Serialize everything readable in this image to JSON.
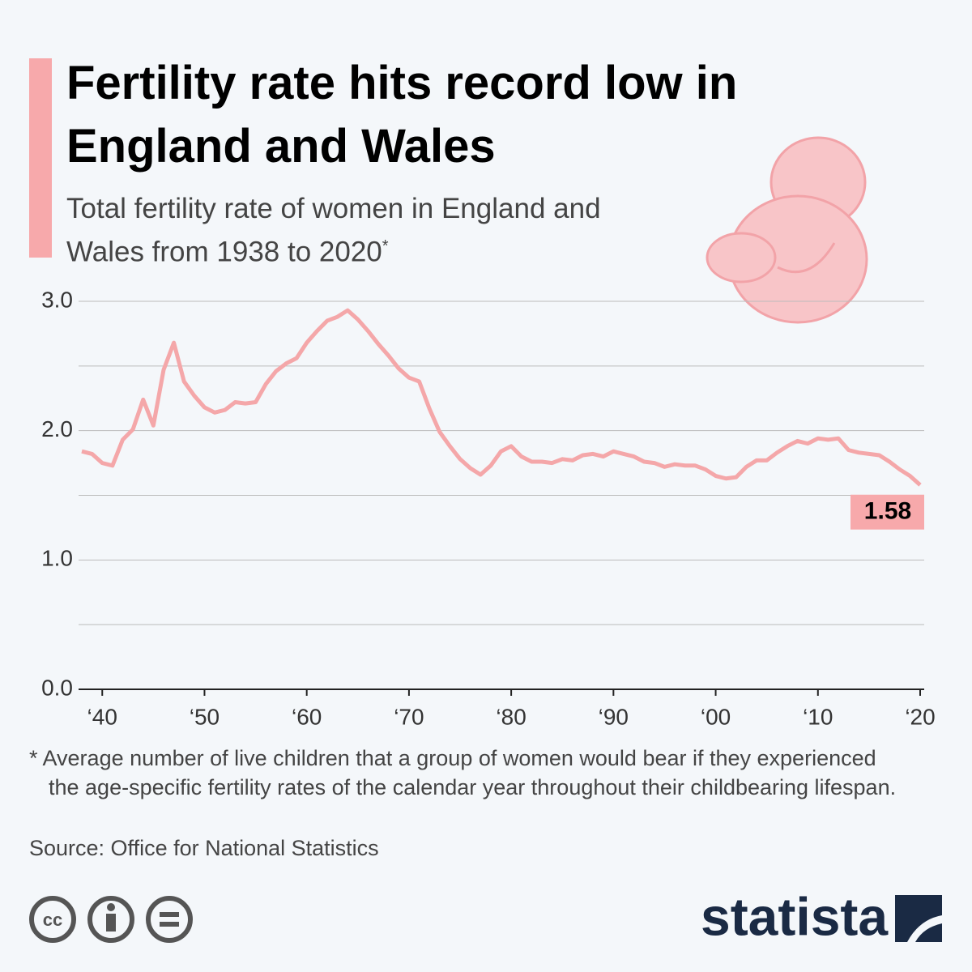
{
  "chart_data": {
    "type": "line",
    "title": "Fertility rate hits record low in England and Wales",
    "subtitle": "Total fertility rate of women in England and Wales from 1938 to 2020",
    "subtitle_mark": "*",
    "footnote": "* Average number of live children that a group of women would bear if they experienced the age-specific fertility rates of the calendar year throughout their childbearing lifespan.",
    "source": "Source: Office for National Statistics",
    "brand": "statista",
    "x": [
      1938,
      1939,
      1940,
      1941,
      1942,
      1943,
      1944,
      1945,
      1946,
      1947,
      1948,
      1949,
      1950,
      1951,
      1952,
      1953,
      1954,
      1955,
      1956,
      1957,
      1958,
      1959,
      1960,
      1961,
      1962,
      1963,
      1964,
      1965,
      1966,
      1967,
      1968,
      1969,
      1970,
      1971,
      1972,
      1973,
      1974,
      1975,
      1976,
      1977,
      1978,
      1979,
      1980,
      1981,
      1982,
      1983,
      1984,
      1985,
      1986,
      1987,
      1988,
      1989,
      1990,
      1991,
      1992,
      1993,
      1994,
      1995,
      1996,
      1997,
      1998,
      1999,
      2000,
      2001,
      2002,
      2003,
      2004,
      2005,
      2006,
      2007,
      2008,
      2009,
      2010,
      2011,
      2012,
      2013,
      2014,
      2015,
      2016,
      2017,
      2018,
      2019,
      2020
    ],
    "series": [
      {
        "name": "Total fertility rate",
        "color": "#f4a7a9",
        "values": [
          1.84,
          1.82,
          1.75,
          1.73,
          1.93,
          2.01,
          2.24,
          2.04,
          2.47,
          2.68,
          2.38,
          2.27,
          2.18,
          2.14,
          2.16,
          2.22,
          2.21,
          2.22,
          2.36,
          2.46,
          2.52,
          2.56,
          2.68,
          2.77,
          2.85,
          2.88,
          2.93,
          2.86,
          2.77,
          2.67,
          2.58,
          2.48,
          2.41,
          2.38,
          2.17,
          1.99,
          1.88,
          1.78,
          1.71,
          1.66,
          1.73,
          1.84,
          1.88,
          1.8,
          1.76,
          1.76,
          1.75,
          1.78,
          1.77,
          1.81,
          1.82,
          1.8,
          1.84,
          1.82,
          1.8,
          1.76,
          1.75,
          1.72,
          1.74,
          1.73,
          1.73,
          1.7,
          1.65,
          1.63,
          1.64,
          1.72,
          1.77,
          1.77,
          1.83,
          1.88,
          1.92,
          1.9,
          1.94,
          1.93,
          1.94,
          1.85,
          1.83,
          1.82,
          1.81,
          1.76,
          1.7,
          1.65,
          1.58
        ]
      }
    ],
    "label_last": true,
    "label_color": "#f7a9ab",
    "xlim": [
      1938,
      2020
    ],
    "xticks": [
      {
        "value": 1940,
        "label": "‘40"
      },
      {
        "value": 1950,
        "label": "‘50"
      },
      {
        "value": 1960,
        "label": "‘60"
      },
      {
        "value": 1970,
        "label": "‘70"
      },
      {
        "value": 1980,
        "label": "‘80"
      },
      {
        "value": 1990,
        "label": "‘90"
      },
      {
        "value": 2000,
        "label": "‘00"
      },
      {
        "value": 2010,
        "label": "‘10"
      },
      {
        "value": 2020,
        "label": "‘20"
      }
    ],
    "ylim": [
      0,
      3
    ],
    "yticks": [
      {
        "value": 0,
        "label": "0.0"
      },
      {
        "value": 1,
        "label": "1.0"
      },
      {
        "value": 2,
        "label": "2.0"
      },
      {
        "value": 3,
        "label": "3.0"
      }
    ],
    "minor_yticks": [
      0.5,
      1.5,
      2.5
    ],
    "grid": true
  }
}
